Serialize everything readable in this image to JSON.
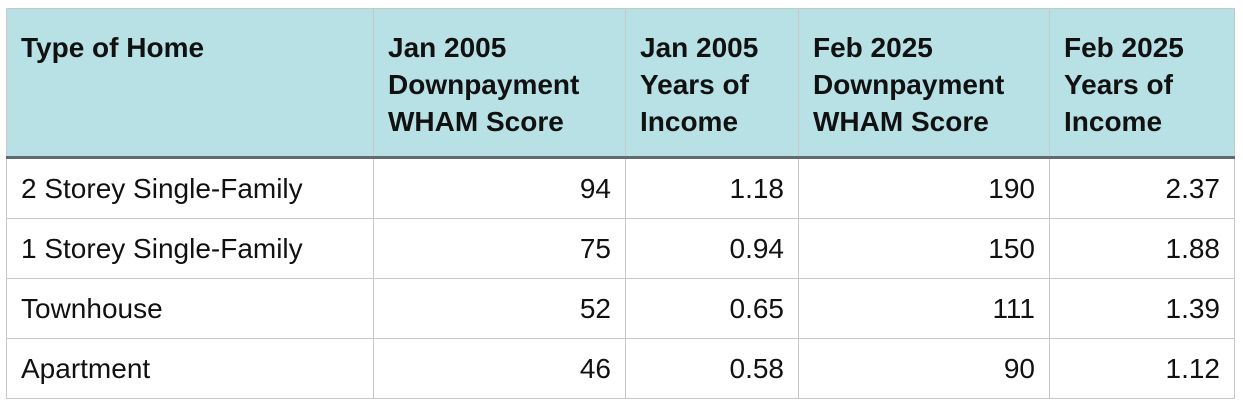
{
  "table": {
    "header": [
      [
        "Type of Home"
      ],
      [
        "Jan 2005",
        "Downpayment",
        "WHAM Score"
      ],
      [
        "Jan 2005",
        "Years of",
        "Income"
      ],
      [
        "Feb 2025",
        "Downpayment",
        "WHAM Score"
      ],
      [
        "Feb 2025",
        "Years of",
        "Income"
      ]
    ],
    "rows": [
      [
        "2 Storey Single-Family",
        94,
        1.18,
        190,
        2.37
      ],
      [
        "1 Storey Single-Family",
        75,
        0.94,
        150,
        1.88
      ],
      [
        "Townhouse",
        52,
        0.65,
        111,
        1.39
      ],
      [
        "Apartment",
        46,
        0.58,
        90,
        1.12
      ]
    ]
  }
}
